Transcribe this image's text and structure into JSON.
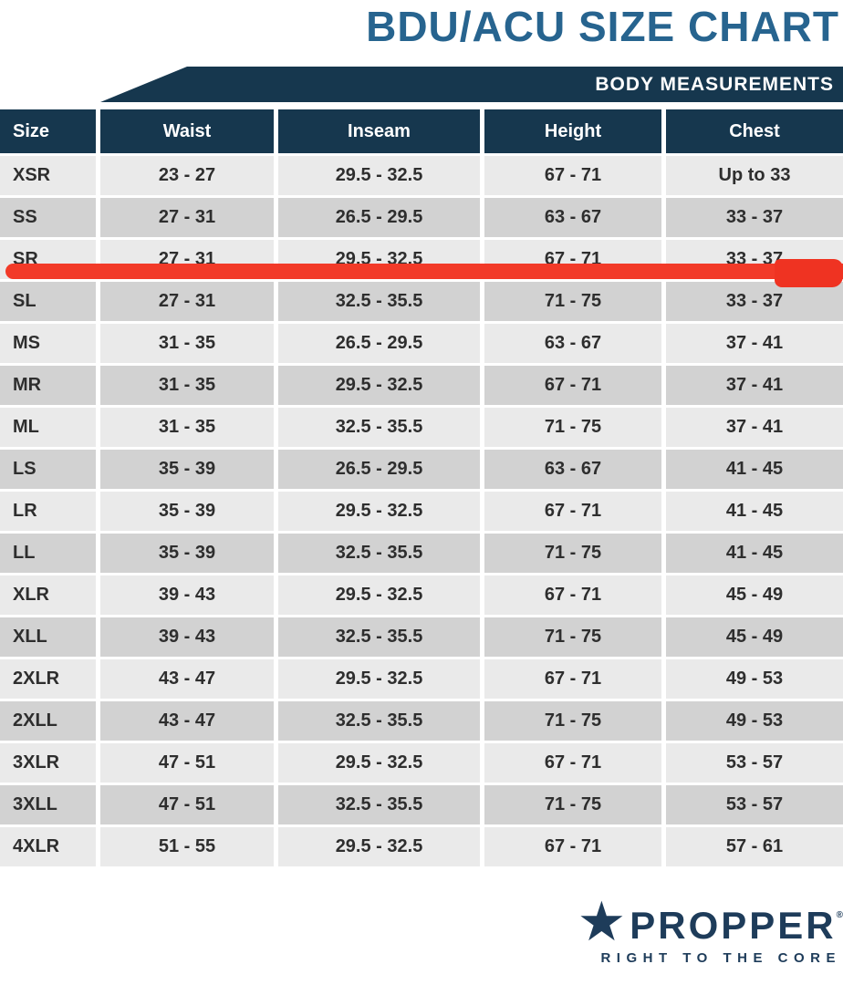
{
  "title": "BDU/ACU SIZE CHART",
  "band": {
    "label": "BODY MEASUREMENTS"
  },
  "chart_data": {
    "type": "table",
    "title": "BDU/ACU SIZE CHART",
    "group_header": "BODY MEASUREMENTS",
    "columns": [
      "Size",
      "Waist",
      "Inseam",
      "Height",
      "Chest"
    ],
    "rows": [
      {
        "size": "XSR",
        "waist": "23 - 27",
        "inseam": "29.5 - 32.5",
        "height": "67 - 71",
        "chest": "Up to 33"
      },
      {
        "size": "SS",
        "waist": "27 - 31",
        "inseam": "26.5 - 29.5",
        "height": "63 - 67",
        "chest": "33 - 37"
      },
      {
        "size": "SR",
        "waist": "27 - 31",
        "inseam": "29.5 - 32.5",
        "height": "67 - 71",
        "chest": "33 - 37"
      },
      {
        "size": "SL",
        "waist": "27 - 31",
        "inseam": "32.5 - 35.5",
        "height": "71 - 75",
        "chest": "33 - 37"
      },
      {
        "size": "MS",
        "waist": "31 - 35",
        "inseam": "26.5 - 29.5",
        "height": "63 - 67",
        "chest": "37 - 41"
      },
      {
        "size": "MR",
        "waist": "31 - 35",
        "inseam": "29.5 - 32.5",
        "height": "67 - 71",
        "chest": "37 - 41"
      },
      {
        "size": "ML",
        "waist": "31 - 35",
        "inseam": "32.5 - 35.5",
        "height": "71 - 75",
        "chest": "37 - 41"
      },
      {
        "size": "LS",
        "waist": "35 - 39",
        "inseam": "26.5 - 29.5",
        "height": "63 - 67",
        "chest": "41 - 45"
      },
      {
        "size": "LR",
        "waist": "35 - 39",
        "inseam": "29.5 - 32.5",
        "height": "67 - 71",
        "chest": "41 - 45"
      },
      {
        "size": "LL",
        "waist": "35 - 39",
        "inseam": "32.5 - 35.5",
        "height": "71 - 75",
        "chest": "41 - 45"
      },
      {
        "size": "XLR",
        "waist": "39 - 43",
        "inseam": "29.5 - 32.5",
        "height": "67 - 71",
        "chest": "45 - 49"
      },
      {
        "size": "XLL",
        "waist": "39 - 43",
        "inseam": "32.5 - 35.5",
        "height": "71 - 75",
        "chest": "45 - 49"
      },
      {
        "size": "2XLR",
        "waist": "43 - 47",
        "inseam": "29.5 - 32.5",
        "height": "67 - 71",
        "chest": "49 - 53"
      },
      {
        "size": "2XLL",
        "waist": "43 - 47",
        "inseam": "32.5 - 35.5",
        "height": "71 - 75",
        "chest": "49 - 53"
      },
      {
        "size": "3XLR",
        "waist": "47 - 51",
        "inseam": "29.5 - 32.5",
        "height": "67 - 71",
        "chest": "53 - 57"
      },
      {
        "size": "3XLL",
        "waist": "47 - 51",
        "inseam": "32.5 - 35.5",
        "height": "71 - 75",
        "chest": "53 - 57"
      },
      {
        "size": "4XLR",
        "waist": "51 - 55",
        "inseam": "29.5 - 32.5",
        "height": "67 - 71",
        "chest": "57 - 61"
      }
    ],
    "highlighted_row": "SR",
    "highlight_annotation": "red marker line struck through the SR row"
  },
  "logo": {
    "star": "★",
    "brand": "PROPPER",
    "registered": "®",
    "tagline": "RIGHT TO THE CORE"
  },
  "colors": {
    "title_blue": "#27648f",
    "navy": "#16374e",
    "row_light": "#eaeaea",
    "row_dark": "#d2d2d2",
    "text_dark": "#2e2e2e",
    "highlight_red": "#f23a28",
    "logo_navy": "#1e3c5a"
  }
}
